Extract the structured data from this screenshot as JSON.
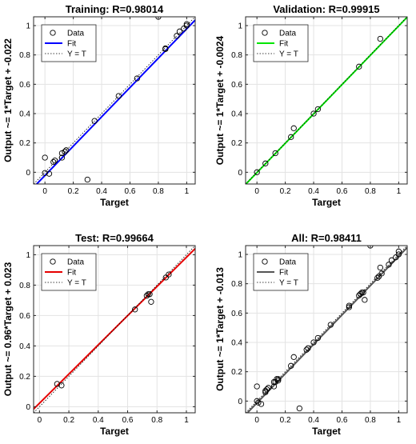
{
  "chart_data": [
    {
      "type": "scatter",
      "title": "Training: R=0.98014",
      "xlabel": "Target",
      "ylabel": "Output ~= 1*Target + -0.022",
      "xlim": [
        -0.08,
        1.06
      ],
      "ylim": [
        -0.08,
        1.06
      ],
      "xticks": [
        "0",
        "0.2",
        "0.4",
        "0.6",
        "0.8",
        "1"
      ],
      "yticks": [
        "0",
        "0.2",
        "0.4",
        "0.6",
        "0.8",
        "1"
      ],
      "fit": {
        "slope": 1.0,
        "intercept": -0.022,
        "color": "#0000ff"
      },
      "points": [
        {
          "x": 0.0,
          "y": 0.1
        },
        {
          "x": 0.0,
          "y": -0.005
        },
        {
          "x": 0.03,
          "y": -0.01
        },
        {
          "x": 0.06,
          "y": 0.07
        },
        {
          "x": 0.07,
          "y": 0.08
        },
        {
          "x": 0.12,
          "y": 0.13
        },
        {
          "x": 0.12,
          "y": 0.1
        },
        {
          "x": 0.14,
          "y": 0.14
        },
        {
          "x": 0.15,
          "y": 0.15
        },
        {
          "x": 0.3,
          "y": -0.05
        },
        {
          "x": 0.35,
          "y": 0.35
        },
        {
          "x": 0.52,
          "y": 0.52
        },
        {
          "x": 0.65,
          "y": 0.64
        },
        {
          "x": 0.8,
          "y": 1.06
        },
        {
          "x": 0.85,
          "y": 0.84
        },
        {
          "x": 0.85,
          "y": 0.845
        },
        {
          "x": 0.93,
          "y": 0.93
        },
        {
          "x": 0.95,
          "y": 0.96
        },
        {
          "x": 0.98,
          "y": 0.98
        },
        {
          "x": 1.0,
          "y": 1.0
        },
        {
          "x": 1.0,
          "y": 1.01
        }
      ]
    },
    {
      "type": "scatter",
      "title": "Validation: R=0.99915",
      "xlabel": "Target",
      "ylabel": "Output ~= 1*Target + -0.0024",
      "xlim": [
        -0.08,
        1.06
      ],
      "ylim": [
        -0.08,
        1.06
      ],
      "xticks": [
        "0",
        "0.2",
        "0.4",
        "0.6",
        "0.8",
        "1"
      ],
      "yticks": [
        "0",
        "0.2",
        "0.4",
        "0.6",
        "0.8",
        "1"
      ],
      "fit": {
        "slope": 1.0,
        "intercept": -0.0024,
        "color": "#00e600"
      },
      "points": [
        {
          "x": 0.0,
          "y": 0.0
        },
        {
          "x": 0.06,
          "y": 0.06
        },
        {
          "x": 0.13,
          "y": 0.13
        },
        {
          "x": 0.24,
          "y": 0.24
        },
        {
          "x": 0.26,
          "y": 0.3
        },
        {
          "x": 0.4,
          "y": 0.4
        },
        {
          "x": 0.43,
          "y": 0.43
        },
        {
          "x": 0.72,
          "y": 0.72
        },
        {
          "x": 0.87,
          "y": 0.91
        }
      ]
    },
    {
      "type": "scatter",
      "title": "Test: R=0.99664",
      "xlabel": "Target",
      "ylabel": "Output ~= 0.96*Target + 0.023",
      "xlim": [
        -0.04,
        1.06
      ],
      "ylim": [
        -0.04,
        1.06
      ],
      "xticks": [
        "0",
        "0.2",
        "0.4",
        "0.6",
        "0.8",
        "1"
      ],
      "yticks": [
        "0",
        "0.2",
        "0.4",
        "0.6",
        "0.8",
        "1"
      ],
      "fit": {
        "slope": 0.96,
        "intercept": 0.023,
        "color": "#e60000"
      },
      "points": [
        {
          "x": 0.12,
          "y": 0.15
        },
        {
          "x": 0.15,
          "y": 0.14
        },
        {
          "x": 0.65,
          "y": 0.64
        },
        {
          "x": 0.73,
          "y": 0.73
        },
        {
          "x": 0.74,
          "y": 0.74
        },
        {
          "x": 0.75,
          "y": 0.74
        },
        {
          "x": 0.76,
          "y": 0.69
        },
        {
          "x": 0.86,
          "y": 0.85
        },
        {
          "x": 0.88,
          "y": 0.87
        }
      ]
    },
    {
      "type": "scatter",
      "title": "All: R=0.98411",
      "xlabel": "Target",
      "ylabel": "Output ~= 1*Target + -0.013",
      "xlim": [
        -0.08,
        1.06
      ],
      "ylim": [
        -0.08,
        1.06
      ],
      "xticks": [
        "0",
        "0.2",
        "0.4",
        "0.6",
        "0.8",
        "1"
      ],
      "yticks": [
        "0",
        "0.2",
        "0.4",
        "0.6",
        "0.8",
        "1"
      ],
      "fit": {
        "slope": 1.0,
        "intercept": -0.013,
        "color": "#555555"
      },
      "points": [
        {
          "x": 0.0,
          "y": 0.1
        },
        {
          "x": 0.0,
          "y": 0.0
        },
        {
          "x": 0.01,
          "y": -0.01
        },
        {
          "x": 0.03,
          "y": -0.02
        },
        {
          "x": 0.06,
          "y": 0.07
        },
        {
          "x": 0.06,
          "y": 0.06
        },
        {
          "x": 0.07,
          "y": 0.08
        },
        {
          "x": 0.08,
          "y": 0.09
        },
        {
          "x": 0.12,
          "y": 0.13
        },
        {
          "x": 0.12,
          "y": 0.1
        },
        {
          "x": 0.13,
          "y": 0.13
        },
        {
          "x": 0.14,
          "y": 0.15
        },
        {
          "x": 0.15,
          "y": 0.14
        },
        {
          "x": 0.15,
          "y": 0.15
        },
        {
          "x": 0.24,
          "y": 0.24
        },
        {
          "x": 0.26,
          "y": 0.3
        },
        {
          "x": 0.3,
          "y": -0.05
        },
        {
          "x": 0.35,
          "y": 0.35
        },
        {
          "x": 0.36,
          "y": 0.36
        },
        {
          "x": 0.4,
          "y": 0.4
        },
        {
          "x": 0.43,
          "y": 0.43
        },
        {
          "x": 0.52,
          "y": 0.52
        },
        {
          "x": 0.65,
          "y": 0.64
        },
        {
          "x": 0.65,
          "y": 0.65
        },
        {
          "x": 0.72,
          "y": 0.72
        },
        {
          "x": 0.73,
          "y": 0.73
        },
        {
          "x": 0.74,
          "y": 0.74
        },
        {
          "x": 0.75,
          "y": 0.74
        },
        {
          "x": 0.76,
          "y": 0.69
        },
        {
          "x": 0.8,
          "y": 1.06
        },
        {
          "x": 0.85,
          "y": 0.84
        },
        {
          "x": 0.86,
          "y": 0.85
        },
        {
          "x": 0.87,
          "y": 0.91
        },
        {
          "x": 0.88,
          "y": 0.87
        },
        {
          "x": 0.93,
          "y": 0.93
        },
        {
          "x": 0.95,
          "y": 0.96
        },
        {
          "x": 0.98,
          "y": 0.98
        },
        {
          "x": 1.0,
          "y": 1.0
        },
        {
          "x": 1.0,
          "y": 1.02
        }
      ]
    }
  ],
  "legend": {
    "data_label": "Data",
    "fit_label": "Fit",
    "ideal_label": "Y = T"
  }
}
